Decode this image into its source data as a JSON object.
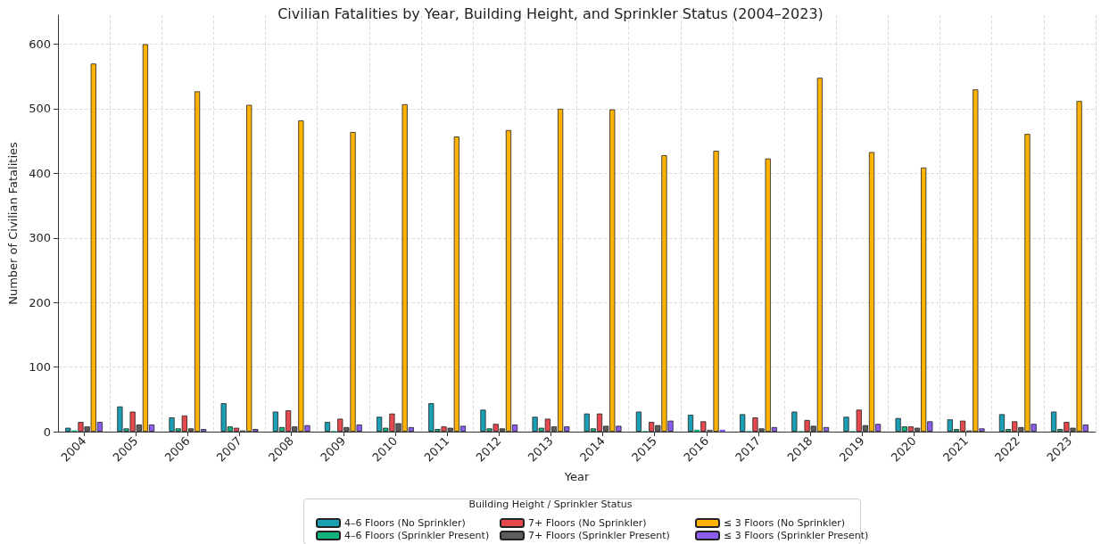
{
  "chart_data": {
    "type": "bar",
    "title": "Civilian Fatalities by Year, Building Height, and Sprinkler Status (2004–2023)",
    "xlabel": "Year",
    "ylabel": "Number of Civilian Fatalities",
    "legend_title": "Building Height / Sprinkler Status",
    "categories": [
      "2004",
      "2005",
      "2006",
      "2007",
      "2008",
      "2009",
      "2010",
      "2011",
      "2012",
      "2013",
      "2014",
      "2015",
      "2016",
      "2017",
      "2018",
      "2019",
      "2020",
      "2021",
      "2022",
      "2023"
    ],
    "series": [
      {
        "name": "4–6 Floors (No Sprinkler)",
        "color": "#1a9fb5",
        "values": [
          6,
          39,
          22,
          44,
          31,
          15,
          23,
          44,
          34,
          23,
          28,
          31,
          26,
          27,
          31,
          23,
          21,
          19,
          27,
          31
        ]
      },
      {
        "name": "4–6 Floors (Sprinkler Present)",
        "color": "#12b07f",
        "values": [
          2,
          5,
          5,
          8,
          7,
          1,
          6,
          4,
          5,
          6,
          5,
          1,
          3,
          1,
          1,
          1,
          8,
          4,
          4,
          4
        ]
      },
      {
        "name": "7+ Floors (No Sprinkler)",
        "color": "#e5484d",
        "values": [
          15,
          31,
          25,
          6,
          33,
          20,
          28,
          8,
          12,
          20,
          28,
          15,
          16,
          22,
          18,
          34,
          8,
          17,
          16,
          15
        ]
      },
      {
        "name": "7+ Floors (Sprinkler Present)",
        "color": "#5c5c5c",
        "values": [
          8,
          11,
          5,
          2,
          8,
          7,
          13,
          6,
          5,
          8,
          9,
          10,
          3,
          5,
          9,
          10,
          6,
          2,
          7,
          6
        ]
      },
      {
        "name": "≤ 3 Floors (No Sprinkler)",
        "color": "#ffb300",
        "values": [
          570,
          600,
          527,
          506,
          482,
          464,
          507,
          457,
          467,
          500,
          499,
          428,
          435,
          423,
          548,
          433,
          409,
          530,
          461,
          512
        ]
      },
      {
        "name": "≤ 3 Floors (Sprinkler Present)",
        "color": "#8b5cf0",
        "values": [
          15,
          11,
          4,
          4,
          10,
          11,
          7,
          9,
          11,
          8,
          9,
          17,
          3,
          7,
          7,
          12,
          16,
          5,
          12,
          11
        ]
      }
    ],
    "ylim": [
      0,
      645
    ],
    "yticks": [
      0,
      100,
      200,
      300,
      400,
      500,
      600
    ],
    "grid": true,
    "legend": "bottom"
  }
}
